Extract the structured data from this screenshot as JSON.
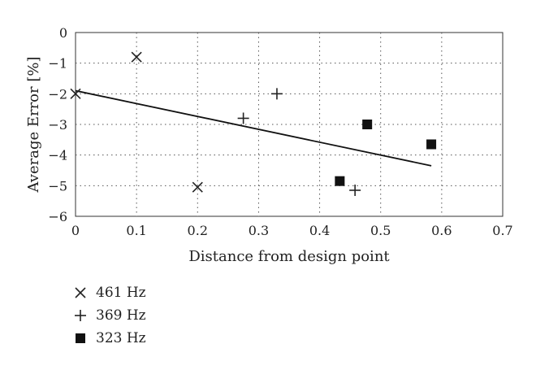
{
  "chart_data": {
    "type": "scatter",
    "xlabel": "Distance from design point",
    "ylabel": "Average Error [%]",
    "xlim": [
      0,
      0.7
    ],
    "ylim": [
      -6,
      0
    ],
    "x_ticks": [
      "0",
      "0.1",
      "0.2",
      "0.3",
      "0.4",
      "0.5",
      "0.6",
      "0.7"
    ],
    "y_ticks": [
      "0",
      "−1",
      "−2",
      "−3",
      "−4",
      "−5",
      "−6"
    ],
    "grid": true,
    "legend_position": "bottom-left",
    "series": [
      {
        "name": "461 Hz",
        "marker": "x",
        "color": "#222222",
        "x": [
          0.0,
          0.1,
          0.2
        ],
        "y": [
          -2.0,
          -0.8,
          -5.05
        ]
      },
      {
        "name": "369 Hz",
        "marker": "plus",
        "color": "#222222",
        "x": [
          0.275,
          0.33,
          0.458
        ],
        "y": [
          -2.8,
          -2.0,
          -5.15
        ]
      },
      {
        "name": "323 Hz",
        "marker": "square",
        "color": "#111111",
        "x": [
          0.433,
          0.478,
          0.583
        ],
        "y": [
          -4.85,
          -3.0,
          -3.65
        ]
      }
    ],
    "trendline": {
      "x": [
        0.0,
        0.583
      ],
      "y": [
        -1.9,
        -4.35
      ]
    }
  }
}
